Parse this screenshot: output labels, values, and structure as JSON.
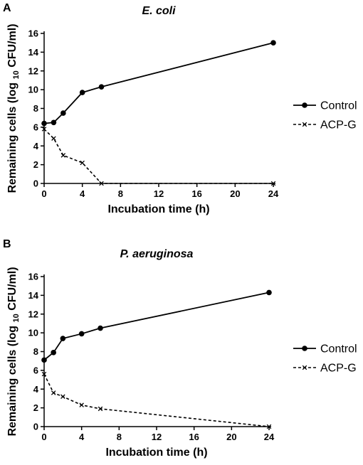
{
  "chart_data": [
    {
      "type": "line",
      "panel": "A",
      "title": "E. coli",
      "xlabel": "Incubation time (h)",
      "ylabel_parts": [
        "Remaining cells (log ",
        "10",
        " CFU/ml)"
      ],
      "xlim": [
        0,
        24
      ],
      "ylim": [
        0,
        16
      ],
      "xticks": [
        0,
        4,
        8,
        12,
        16,
        20,
        24
      ],
      "yticks": [
        0,
        2,
        4,
        6,
        8,
        10,
        12,
        14,
        16
      ],
      "grid": false,
      "legend_position": "right",
      "series": [
        {
          "name": "Control",
          "marker": "circle",
          "dash": "solid",
          "x": [
            0,
            1,
            2,
            4,
            6,
            24
          ],
          "y": [
            6.4,
            6.5,
            7.5,
            9.7,
            10.3,
            15.0
          ]
        },
        {
          "name": "ACP-G",
          "marker": "x",
          "dash": "dashed",
          "x": [
            0,
            1,
            2,
            4,
            6,
            24
          ],
          "y": [
            5.8,
            4.8,
            3.0,
            2.2,
            0.0,
            0.0
          ]
        }
      ]
    },
    {
      "type": "line",
      "panel": "B",
      "title": "P. aeruginosa",
      "xlabel": "Incubation time (h)",
      "ylabel_parts": [
        "Remaining cells (log ",
        "10",
        " CFU/ml)"
      ],
      "xlim": [
        0,
        24
      ],
      "ylim": [
        0,
        16
      ],
      "xticks": [
        0,
        4,
        8,
        12,
        16,
        20,
        24
      ],
      "yticks": [
        0,
        2,
        4,
        6,
        8,
        10,
        12,
        14,
        16
      ],
      "grid": false,
      "legend_position": "right",
      "series": [
        {
          "name": "Control",
          "marker": "circle",
          "dash": "solid",
          "x": [
            0,
            1,
            2,
            4,
            6,
            24
          ],
          "y": [
            7.1,
            7.9,
            9.4,
            9.9,
            10.5,
            14.3
          ]
        },
        {
          "name": "ACP-G",
          "marker": "x",
          "dash": "dashed",
          "x": [
            0,
            1,
            2,
            4,
            6,
            24
          ],
          "y": [
            5.6,
            3.6,
            3.2,
            2.3,
            1.9,
            0.0
          ]
        }
      ]
    }
  ]
}
